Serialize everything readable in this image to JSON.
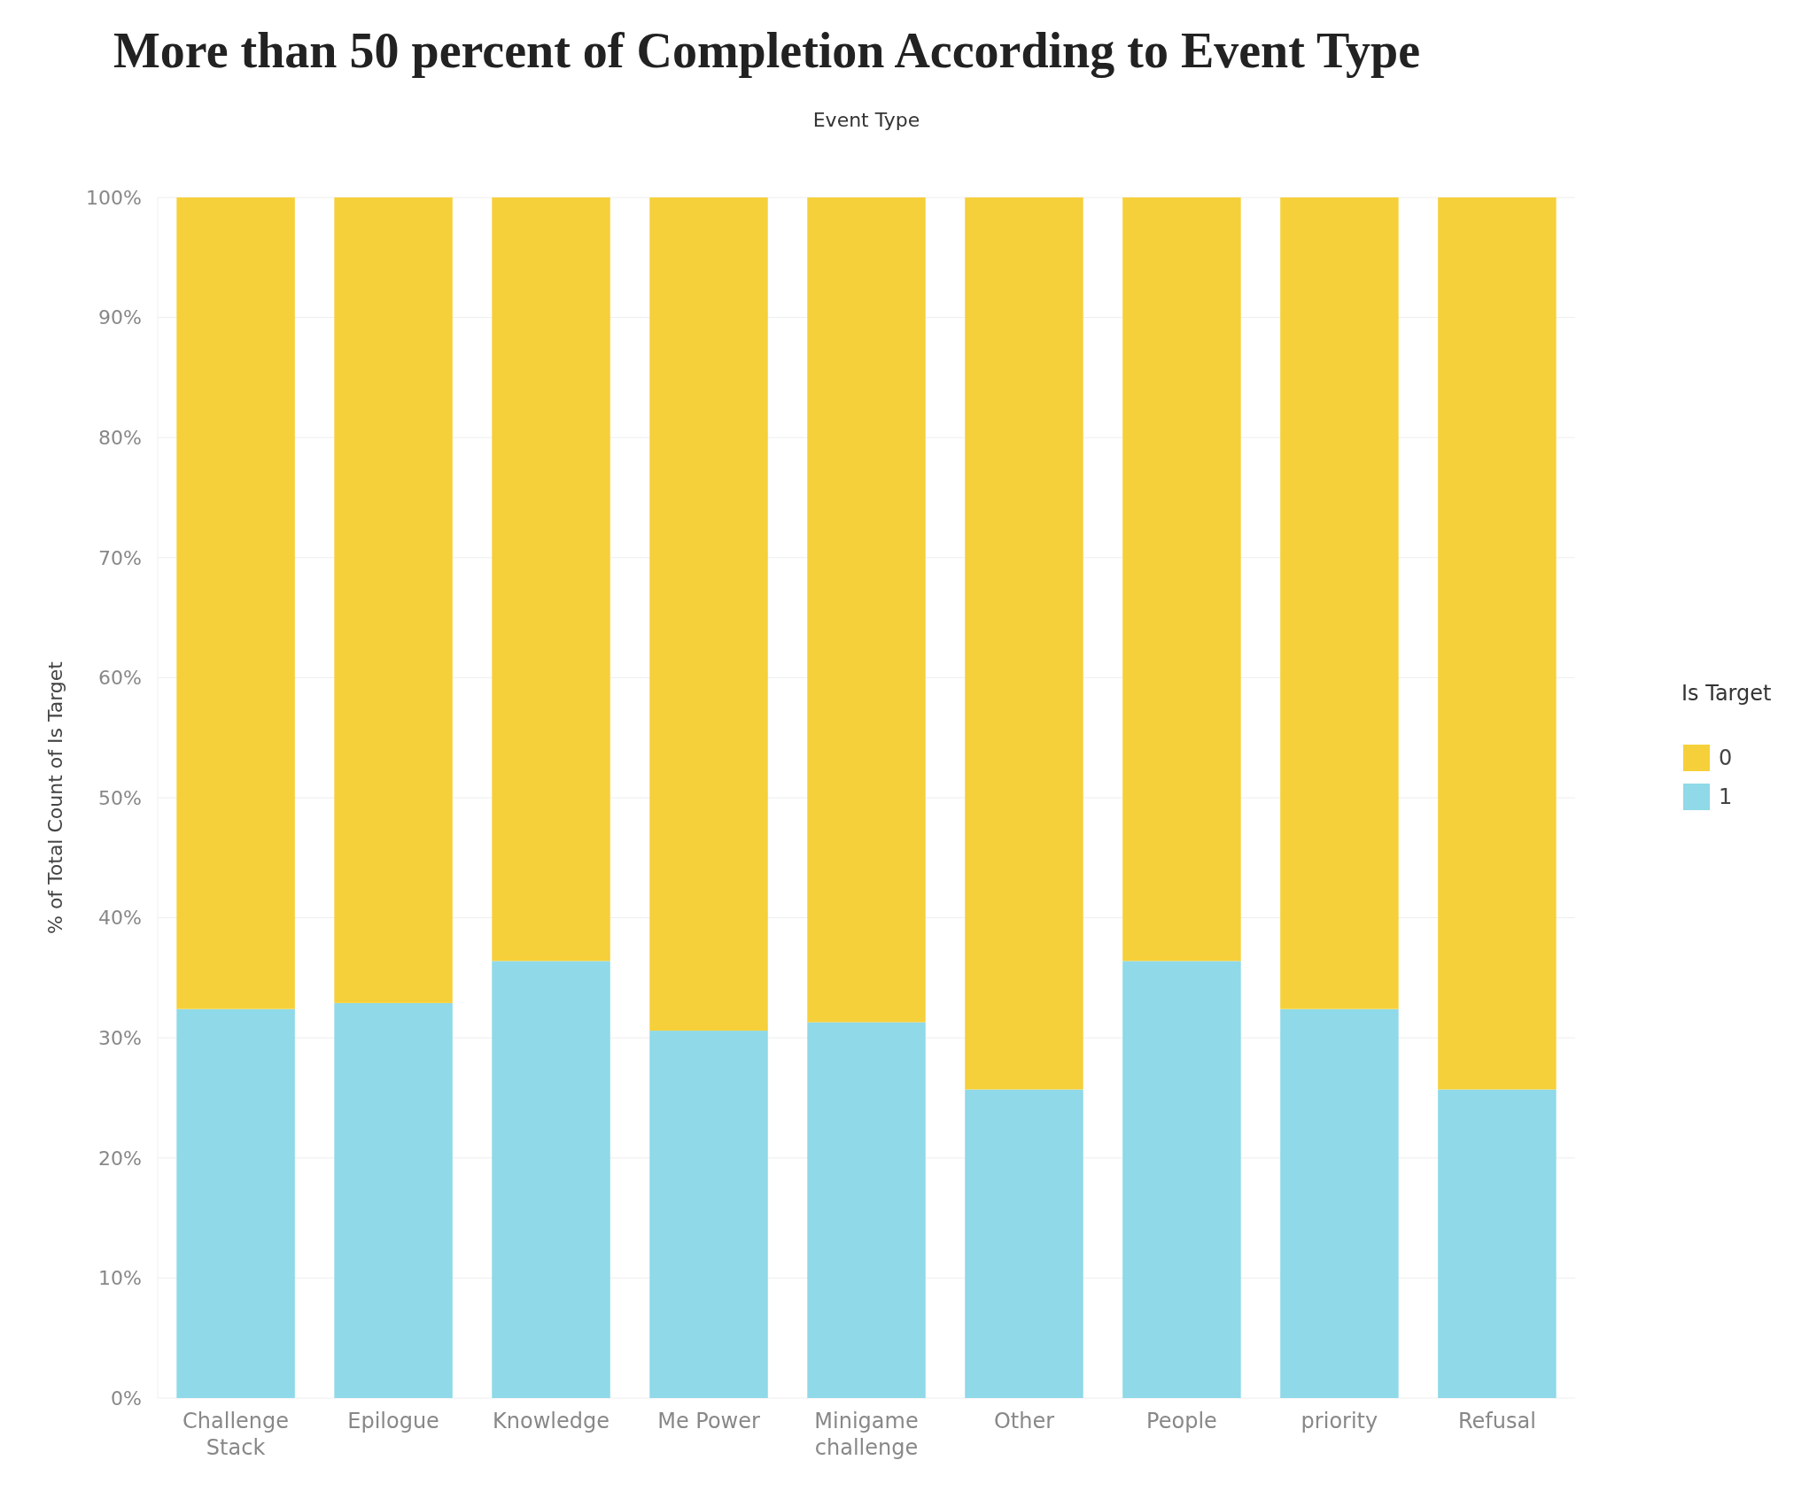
{
  "chart_data": {
    "type": "bar",
    "title": "More than 50 percent of Completion According to Event Type",
    "xlabel": "Event Type",
    "ylabel": "% of Total Count of Is Target",
    "legend_title": "Is Target",
    "categories": [
      "Challenge Stack",
      "Epilogue",
      "Knowledge",
      "Me Power",
      "Minigame challenge",
      "Other",
      "People",
      "priority",
      "Refusal"
    ],
    "series": [
      {
        "name": "1",
        "color": "#8fd9e8",
        "values": [
          32.4,
          32.9,
          36.4,
          30.6,
          31.3,
          25.7,
          36.4,
          32.4,
          25.7
        ]
      },
      {
        "name": "0",
        "color": "#f6d03a",
        "values": [
          67.6,
          67.1,
          63.6,
          69.4,
          68.7,
          74.3,
          63.6,
          67.6,
          74.3
        ]
      }
    ],
    "stacked": true,
    "ylim": [
      0,
      100
    ],
    "yticks": [
      {
        "value": 0,
        "label": "0%"
      },
      {
        "value": 10,
        "label": "10%"
      },
      {
        "value": 20,
        "label": "20%"
      },
      {
        "value": 30,
        "label": "30%"
      },
      {
        "value": 40,
        "label": "40%"
      },
      {
        "value": 50,
        "label": "50%"
      },
      {
        "value": 60,
        "label": "60%"
      },
      {
        "value": 70,
        "label": "70%"
      },
      {
        "value": 80,
        "label": "80%"
      },
      {
        "value": 90,
        "label": "90%"
      },
      {
        "value": 100,
        "label": "100%"
      }
    ],
    "grid": "y",
    "legend": "right"
  }
}
